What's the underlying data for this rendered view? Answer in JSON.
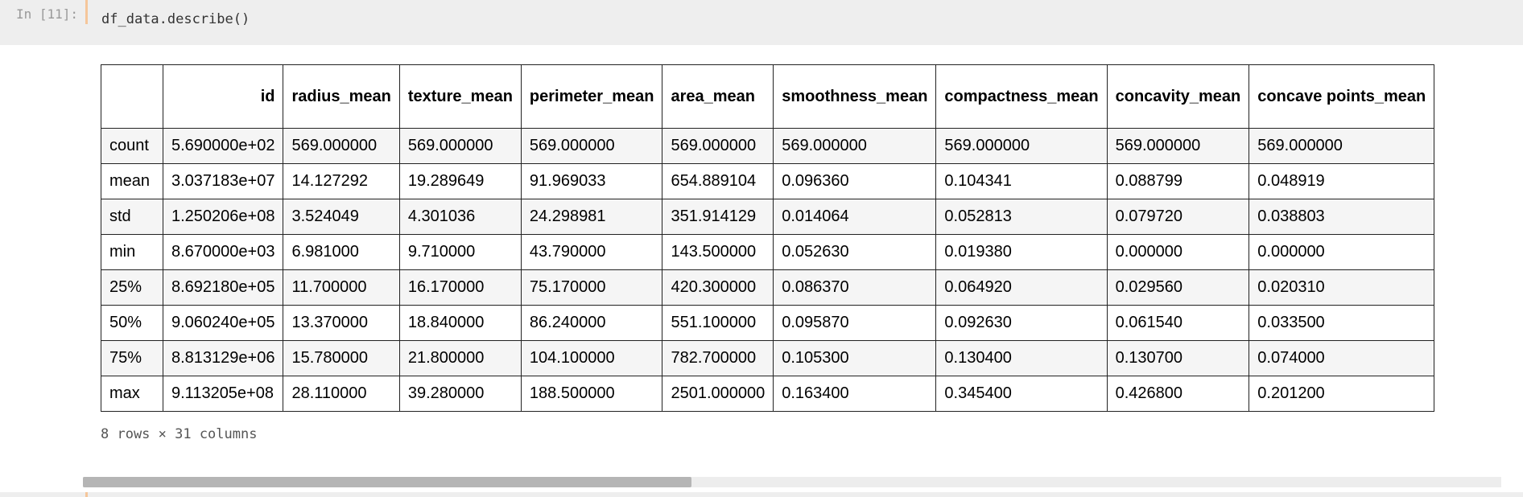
{
  "cell": {
    "prompt": "In [11]:",
    "code": "df_data.describe()"
  },
  "table": {
    "columns": [
      "id",
      "radius_mean",
      "texture_mean",
      "perimeter_mean",
      "area_mean",
      "smoothness_mean",
      "compactness_mean",
      "concavity_mean",
      "concave points_mean"
    ],
    "rows": [
      {
        "index": "count",
        "values": [
          "5.690000e+02",
          "569.000000",
          "569.000000",
          "569.000000",
          "569.000000",
          "569.000000",
          "569.000000",
          "569.000000",
          "569.000000"
        ]
      },
      {
        "index": "mean",
        "values": [
          "3.037183e+07",
          "14.127292",
          "19.289649",
          "91.969033",
          "654.889104",
          "0.096360",
          "0.104341",
          "0.088799",
          "0.048919"
        ]
      },
      {
        "index": "std",
        "values": [
          "1.250206e+08",
          "3.524049",
          "4.301036",
          "24.298981",
          "351.914129",
          "0.014064",
          "0.052813",
          "0.079720",
          "0.038803"
        ]
      },
      {
        "index": "min",
        "values": [
          "8.670000e+03",
          "6.981000",
          "9.710000",
          "43.790000",
          "143.500000",
          "0.052630",
          "0.019380",
          "0.000000",
          "0.000000"
        ]
      },
      {
        "index": "25%",
        "values": [
          "8.692180e+05",
          "11.700000",
          "16.170000",
          "75.170000",
          "420.300000",
          "0.086370",
          "0.064920",
          "0.029560",
          "0.020310"
        ]
      },
      {
        "index": "50%",
        "values": [
          "9.060240e+05",
          "13.370000",
          "18.840000",
          "86.240000",
          "551.100000",
          "0.095870",
          "0.092630",
          "0.061540",
          "0.033500"
        ]
      },
      {
        "index": "75%",
        "values": [
          "8.813129e+06",
          "15.780000",
          "21.800000",
          "104.100000",
          "782.700000",
          "0.105300",
          "0.130400",
          "0.130700",
          "0.074000"
        ]
      },
      {
        "index": "max",
        "values": [
          "9.113205e+08",
          "28.110000",
          "39.280000",
          "188.500000",
          "2501.000000",
          "0.163400",
          "0.345400",
          "0.426800",
          "0.201200"
        ]
      }
    ]
  },
  "shape_note": "8 rows × 31 columns",
  "scrollbar": {
    "position_fraction": 0,
    "visible_fraction": 0.43
  }
}
